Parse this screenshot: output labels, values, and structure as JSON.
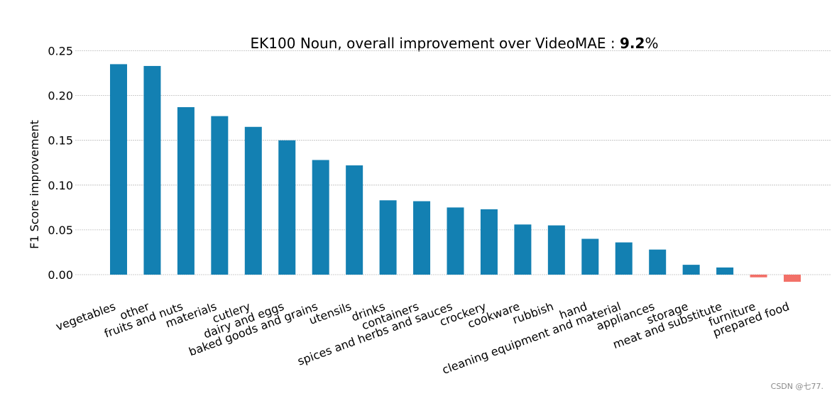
{
  "chart_data": {
    "type": "bar",
    "title_prefix": "EK100 Noun, overall improvement over VideoMAE : ",
    "title_value": "9.2",
    "title_suffix": "%",
    "ylabel": "F1 Score improvement",
    "xlabel": "",
    "ylim": [
      -0.01,
      0.25
    ],
    "yticks": [
      "0.00",
      "0.05",
      "0.10",
      "0.15",
      "0.20",
      "0.25"
    ],
    "grid": true,
    "legend": "none",
    "colors": {
      "positive": "#1380b2",
      "negative": "#f27068",
      "grid": "#bdbdbd"
    },
    "categories": [
      "vegetables",
      "other",
      "fruits and nuts",
      "materials",
      "cutlery",
      "dairy and eggs",
      "baked goods and grains",
      "utensils",
      "drinks",
      "containers",
      "spices and herbs and sauces",
      "crockery",
      "cookware",
      "rubbish",
      "hand",
      "cleaning equipment and material",
      "appliances",
      "storage",
      "meat and substitute",
      "furniture",
      "prepared food"
    ],
    "values": [
      0.235,
      0.233,
      0.187,
      0.177,
      0.165,
      0.15,
      0.128,
      0.122,
      0.083,
      0.082,
      0.075,
      0.073,
      0.056,
      0.055,
      0.04,
      0.036,
      0.028,
      0.011,
      0.008,
      -0.003,
      -0.008
    ]
  },
  "watermark": "CSDN @七77."
}
